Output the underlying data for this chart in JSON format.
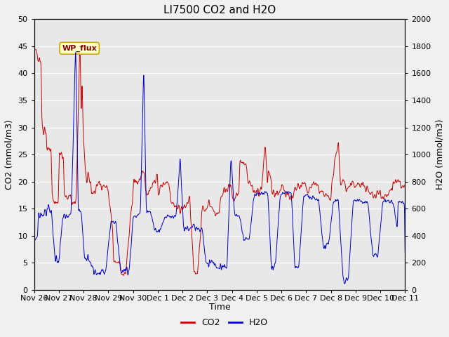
{
  "title": "LI7500 CO2 and H2O",
  "ylabel_left": "CO2 (mmol/m3)",
  "ylabel_right": "H2O (mmol/m3)",
  "xlabel": "Time",
  "ylim_left": [
    0,
    50
  ],
  "ylim_right": [
    0,
    2000
  ],
  "annotation_text": "WP_flux",
  "bg_color": "#e8e8e8",
  "fig_bg_color": "#f0f0f0",
  "co2_color": "#cc0000",
  "h2o_color": "#0000cc",
  "title_fontsize": 11,
  "axis_label_fontsize": 9,
  "tick_label_fontsize": 8,
  "legend_fontsize": 9,
  "x_tick_labels": [
    "Nov 26",
    "Nov 27",
    "Nov 28",
    "Nov 29",
    "Nov 30",
    "Dec 1",
    "Dec 2",
    "Dec 3",
    "Dec 4",
    "Dec 5",
    "Dec 6",
    "Dec 7",
    "Dec 8",
    "Dec 9",
    "Dec 10",
    "Dec 11"
  ],
  "x_tick_positions": [
    0,
    1,
    2,
    3,
    4,
    5,
    6,
    7,
    8,
    9,
    10,
    11,
    12,
    13,
    14,
    15
  ],
  "yticks_left": [
    0,
    5,
    10,
    15,
    20,
    25,
    30,
    35,
    40,
    45,
    50
  ],
  "yticks_right": [
    0,
    200,
    400,
    600,
    800,
    1000,
    1200,
    1400,
    1600,
    1800,
    2000
  ]
}
